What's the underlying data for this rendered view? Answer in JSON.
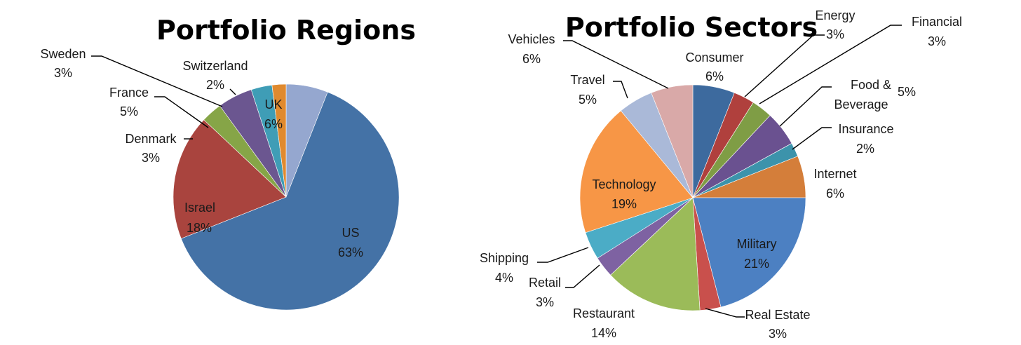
{
  "chart_data": [
    {
      "type": "pie",
      "title": "Portfolio Regions",
      "slices": [
        {
          "name": "UK",
          "value": 6,
          "label": "6%",
          "color": "#95A7CF"
        },
        {
          "name": "US",
          "value": 63,
          "label": "63%",
          "color": "#4472A6"
        },
        {
          "name": "Israel",
          "value": 18,
          "label": "18%",
          "color": "#A9443E"
        },
        {
          "name": "Denmark",
          "value": 3,
          "label": "3%",
          "color": "#86A547"
        },
        {
          "name": "France",
          "value": 5,
          "label": "5%",
          "color": "#6B5690"
        },
        {
          "name": "Sweden",
          "value": 3,
          "label": "3%",
          "color": "#3F9DB6"
        },
        {
          "name": "Switzerland",
          "value": 2,
          "label": "2%",
          "color": "#E08A2F"
        }
      ]
    },
    {
      "type": "pie",
      "title": "Portfolio Sectors",
      "slices": [
        {
          "name": "Consumer",
          "value": 6,
          "label": "6%",
          "color": "#3D6A9E"
        },
        {
          "name": "Energy",
          "value": 3,
          "label": "3%",
          "color": "#B0403D"
        },
        {
          "name": "Financial",
          "value": 3,
          "label": "3%",
          "color": "#7F9D45"
        },
        {
          "name": "Food & Beverage",
          "value": 5,
          "label": "5%",
          "color": "#6A5190"
        },
        {
          "name": "Insurance",
          "value": 2,
          "label": "2%",
          "color": "#3C93AB"
        },
        {
          "name": "Internet",
          "value": 6,
          "label": "6%",
          "color": "#D47E3A"
        },
        {
          "name": "Military",
          "value": 21,
          "label": "21%",
          "color": "#4C80C2"
        },
        {
          "name": "Real Estate",
          "value": 3,
          "label": "3%",
          "color": "#C9504C"
        },
        {
          "name": "Restaurant",
          "value": 14,
          "label": "14%",
          "color": "#9BBB59"
        },
        {
          "name": "Retail",
          "value": 3,
          "label": "3%",
          "color": "#7E62A2"
        },
        {
          "name": "Shipping",
          "value": 4,
          "label": "4%",
          "color": "#4BACC6"
        },
        {
          "name": "Technology",
          "value": 19,
          "label": "19%",
          "color": "#F79646"
        },
        {
          "name": "Travel",
          "value": 5,
          "label": "5%",
          "color": "#AAB9D8"
        },
        {
          "name": "Vehicles",
          "value": 6,
          "label": "6%",
          "color": "#D9A9A8"
        }
      ]
    }
  ]
}
